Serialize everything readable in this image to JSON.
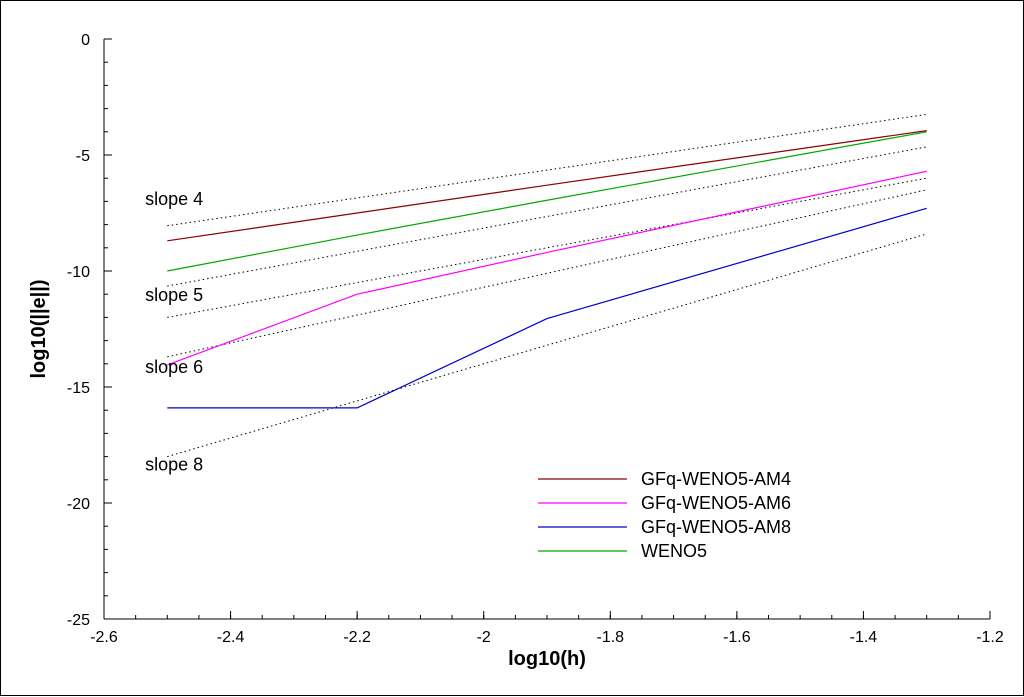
{
  "chart_data": {
    "type": "line",
    "title": "",
    "xlabel": "log10(h)",
    "ylabel": "log10(||e||)",
    "xlim": [
      -2.6,
      -1.2
    ],
    "ylim": [
      -25,
      0
    ],
    "xticks": [
      -2.6,
      -2.4,
      -2.2,
      -2,
      -1.8,
      -1.6,
      -1.4,
      -1.2
    ],
    "xtick_labels": [
      "-2.6",
      "-2.4",
      "-2.2",
      "-2",
      "-1.8",
      "-1.6",
      "-1.4",
      "-1.2"
    ],
    "yticks": [
      0,
      -5,
      -10,
      -15,
      -20,
      -25
    ],
    "ytick_labels": [
      "0",
      "-5",
      "-10",
      "-15",
      "-20",
      "-25"
    ],
    "grid": false,
    "legend_position": "bottom-right",
    "series": [
      {
        "name": "GFq-WENO5-AM4",
        "color": "#8b0000",
        "x": [
          -2.5,
          -2.2,
          -1.9,
          -1.3
        ],
        "y": [
          -8.7,
          -7.5,
          -6.3,
          -3.95
        ]
      },
      {
        "name": "GFq-WENO5-AM6",
        "color": "#ff00ff",
        "x": [
          -2.5,
          -2.2,
          -1.9,
          -1.3
        ],
        "y": [
          -14.05,
          -11.0,
          -9.2,
          -5.7
        ]
      },
      {
        "name": "GFq-WENO5-AM8",
        "color": "#0000cd",
        "x": [
          -2.5,
          -2.2,
          -1.9,
          -1.3
        ],
        "y": [
          -15.9,
          -15.9,
          -12.05,
          -7.3
        ]
      },
      {
        "name": "WENO5",
        "color": "#00aa00",
        "x": [
          -2.5,
          -2.2,
          -1.9,
          -1.3
        ],
        "y": [
          -10.0,
          -8.45,
          -6.95,
          -4.0
        ]
      }
    ],
    "reference_lines": [
      {
        "label": "slope 4",
        "x": [
          -2.5,
          -1.3
        ],
        "y": [
          -8.05,
          -3.25
        ]
      },
      {
        "label": "",
        "x": [
          -2.5,
          -1.3
        ],
        "y": [
          -10.65,
          -4.65
        ]
      },
      {
        "label": "slope 5",
        "x": [
          -2.5,
          -1.3
        ],
        "y": [
          -12.0,
          -6.0
        ]
      },
      {
        "label": "slope 6",
        "x": [
          -2.5,
          -1.3
        ],
        "y": [
          -13.7,
          -6.5
        ]
      },
      {
        "label": "slope 8",
        "x": [
          -2.5,
          -1.3
        ],
        "y": [
          -18.0,
          -8.4
        ]
      }
    ],
    "annotations": [
      {
        "text": "slope 4",
        "x": -2.535,
        "y": -7.15
      },
      {
        "text": "slope 5",
        "x": -2.535,
        "y": -11.3
      },
      {
        "text": "slope 6",
        "x": -2.535,
        "y": -14.4
      },
      {
        "text": "slope 8",
        "x": -2.535,
        "y": -18.6
      }
    ]
  }
}
